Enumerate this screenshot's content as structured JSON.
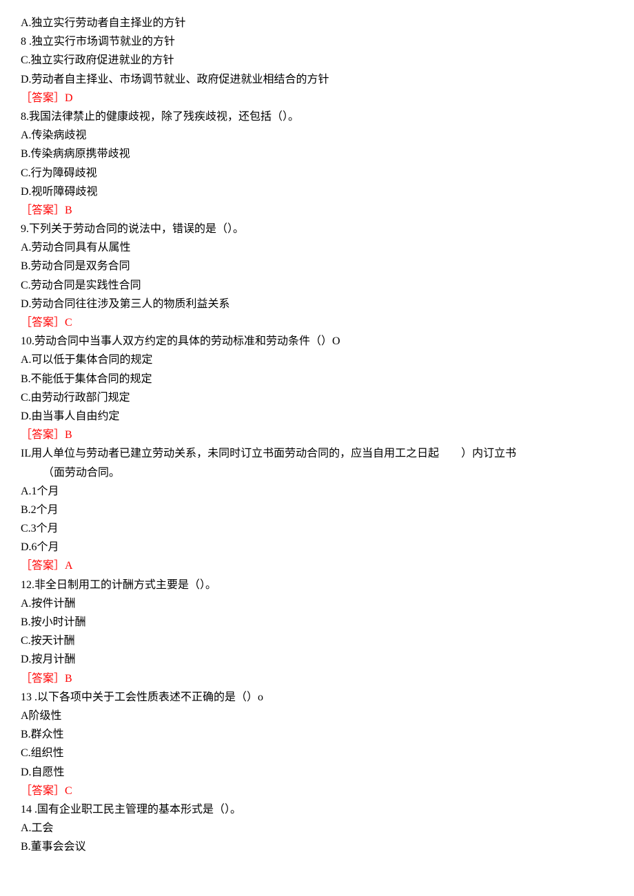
{
  "colors": {
    "text": "#000000",
    "answer": "#ff0000",
    "background": "#ffffff"
  },
  "typography": {
    "font_family": "SimSun",
    "font_size_pt": 12,
    "line_height": 1.7
  },
  "q7": {
    "optA": "A.独立实行劳动者自主择业的方针",
    "optB": "8 .独立实行市场调节就业的方针",
    "optC": "C.独立实行政府促进就业的方针",
    "optD": "D.劳动者自主择业、市场调节就业、政府促进就业相结合的方针",
    "answer": "［答案］D"
  },
  "q8": {
    "stem": "8.我国法律禁止的健康歧视，除了残疾歧视，还包括（）。",
    "optA": "A.传染病歧视",
    "optB": "B.传染病病原携带歧视",
    "optC": "C.行为障碍歧视",
    "optD": "D.视听障碍歧视",
    "answer": "［答案］B"
  },
  "q9": {
    "stem": "9.下列关于劳动合同的说法中，错误的是（）。",
    "optA": "A.劳动合同具有从属性",
    "optB": "B.劳动合同是双务合同",
    "optC": "C.劳动合同是实践性合同",
    "optD": "D.劳动合同往往涉及第三人的物质利益关系",
    "answer": "［答案］C"
  },
  "q10": {
    "stem": "10.劳动合同中当事人双方约定的具体的劳动标准和劳动条件（）O",
    "optA": "A.可以低于集体合同的规定",
    "optB": "B.不能低于集体合同的规定",
    "optC": "C.由劳动行政部门规定",
    "optD": "D.由当事人自由约定",
    "answer": "［答案］B"
  },
  "q11": {
    "stem1": "IL用人单位与劳动者已建立劳动关系，未同时订立书面劳动合同的，应当自用工之日起　　）内订立书",
    "stem2": "（面劳动合同。",
    "optA": "A.1个月",
    "optB": "B.2个月",
    "optC": "C.3个月",
    "optD": "D.6个月",
    "answer": "［答案］A"
  },
  "q12": {
    "stem": "12.非全日制用工的计酬方式主要是（）。",
    "optA": "A.按件计酬",
    "optB": "B.按小时计酬",
    "optC": "C.按天计酬",
    "optD": "D.按月计酬",
    "answer": "［答案］B"
  },
  "q13": {
    "stem": "13 .以下各项中关于工会性质表述不正确的是（）o",
    "optA": "A阶级性",
    "optB": "B.群众性",
    "optC": "C.组织性",
    "optD": "D.自愿性",
    "answer": "［答案］C"
  },
  "q14": {
    "stem": "14 .国有企业职工民主管理的基本形式是（）。",
    "optA": "A.工会",
    "optB": "B.董事会会议"
  }
}
